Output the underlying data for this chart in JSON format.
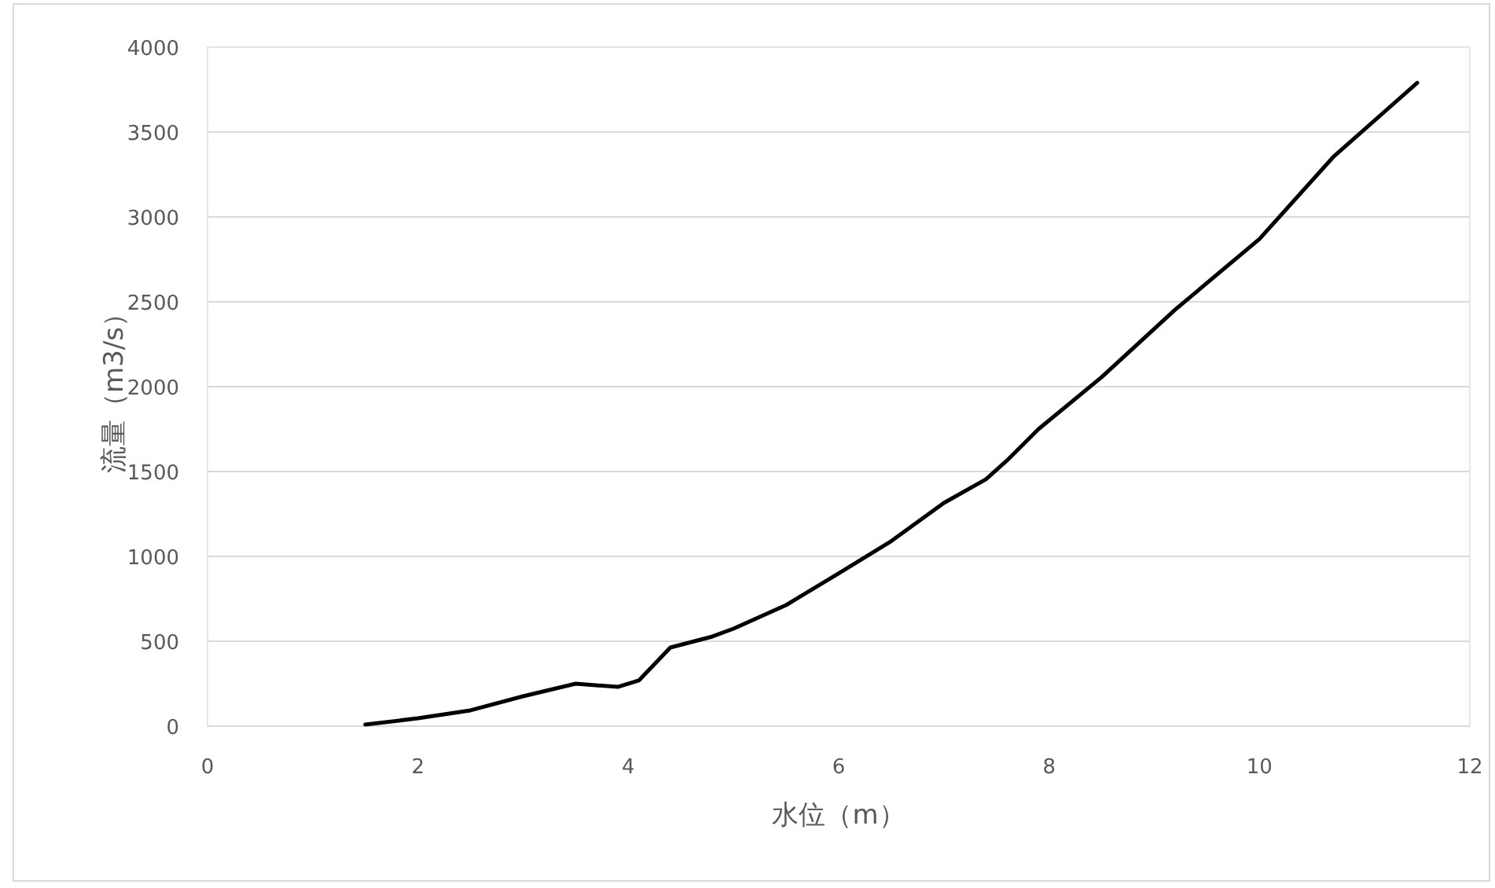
{
  "chart_data": {
    "type": "line",
    "xlabel": "水位（m）",
    "ylabel": "流量（m3/s）",
    "xlim": [
      0,
      12
    ],
    "xticks": [
      0,
      2,
      4,
      6,
      8,
      10,
      12
    ],
    "ylim": [
      0,
      4000
    ],
    "yticks": [
      0,
      500,
      1000,
      1500,
      2000,
      2500,
      3000,
      3500,
      4000
    ],
    "grid": "y",
    "line_style": "solid",
    "series": [
      {
        "color": "#000000",
        "x": [
          1.5,
          2.0,
          2.5,
          3.0,
          3.5,
          3.9,
          4.1,
          4.4,
          4.8,
          5.0,
          5.5,
          6.0,
          6.5,
          7.0,
          7.4,
          7.6,
          7.9,
          8.5,
          9.2,
          10.0,
          10.7,
          11.5
        ],
        "values": [
          9,
          46,
          93,
          176,
          250,
          231,
          269,
          463,
          528,
          574,
          713,
          900,
          1090,
          1315,
          1454,
          1565,
          1750,
          2056,
          2454,
          2870,
          3352,
          3790
        ]
      }
    ]
  }
}
